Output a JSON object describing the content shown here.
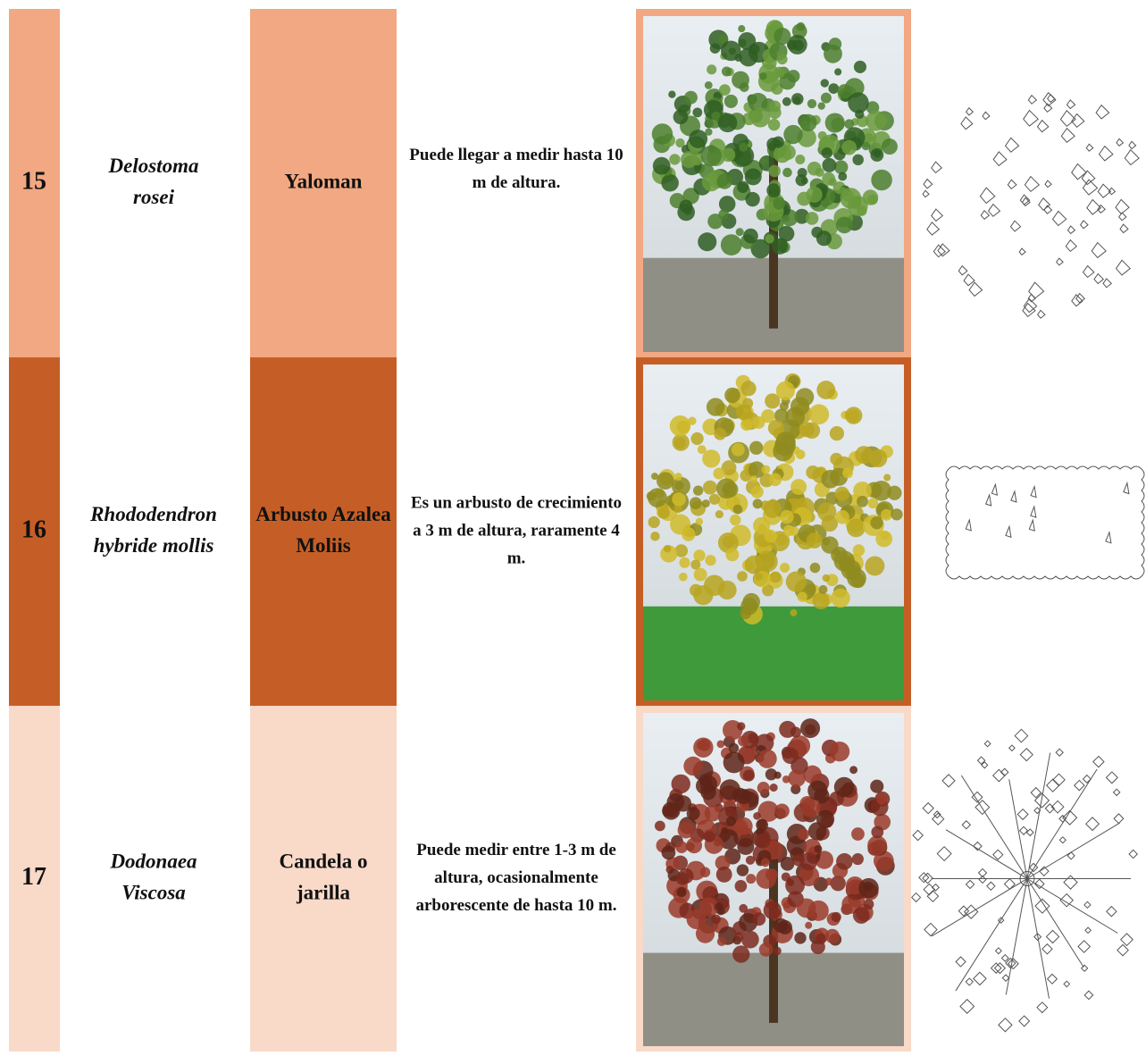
{
  "table": {
    "rows": [
      {
        "number": "15",
        "scientific_name": [
          "Delostoma",
          "rosei"
        ],
        "common_name": [
          "Yaloman"
        ],
        "description": [
          "Puede llegar a medir hasta 10",
          "m de altura."
        ]
      },
      {
        "number": "16",
        "scientific_name": [
          "Rhododendron",
          "hybride mollis"
        ],
        "common_name": [
          "Arbusto Azalea",
          "Moliis"
        ],
        "description": [
          "Es un arbusto de crecimiento",
          "a 3 m de altura, raramente 4",
          "m."
        ]
      },
      {
        "number": "17",
        "scientific_name": [
          "Dodonaea",
          "Viscosa"
        ],
        "common_name": [
          "Candela o",
          "jarilla"
        ],
        "description": [
          "Puede medir entre 1-3 m de",
          "altura, ocasionalmente",
          "arborescente de hasta 10 m."
        ]
      }
    ]
  }
}
